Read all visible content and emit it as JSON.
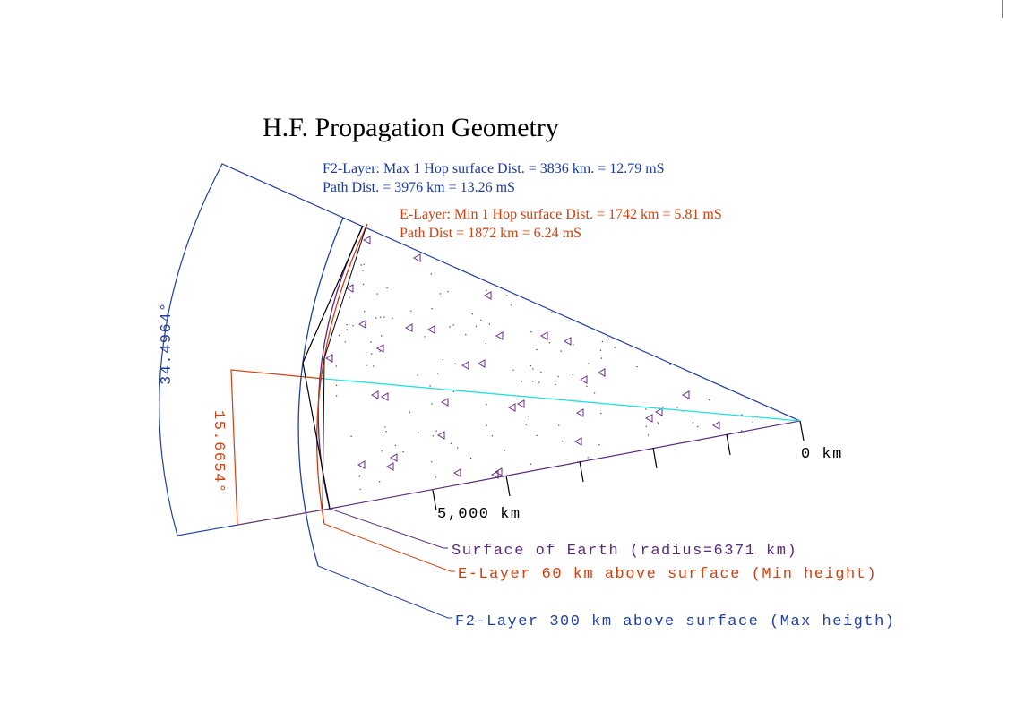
{
  "header": {
    "title": "H.F. Propagation Geometry"
  },
  "f2_info": [
    "F2-Layer: Max 1 Hop surface Dist. = 3836 km. = 12.79 mS",
    "Path Dist. = 3976 km = 13.26 mS"
  ],
  "e_info": [
    "E-Layer: Min 1 Hop surface Dist. = 1742 km = 5.81 mS",
    "Path Dist = 1872 km = 6.24 mS"
  ],
  "angles": {
    "f2": "34.4964°",
    "e": "15.6654°"
  },
  "distance_labels": {
    "origin": "0 km",
    "mark": "5,000 km"
  },
  "legend": {
    "surface": "Surface of Earth (radius=6371 km)",
    "e_layer": "E-Layer 60 km above surface (Min height)",
    "f2_layer": "F2-Layer 300 km above surface (Max heigth)"
  }
}
